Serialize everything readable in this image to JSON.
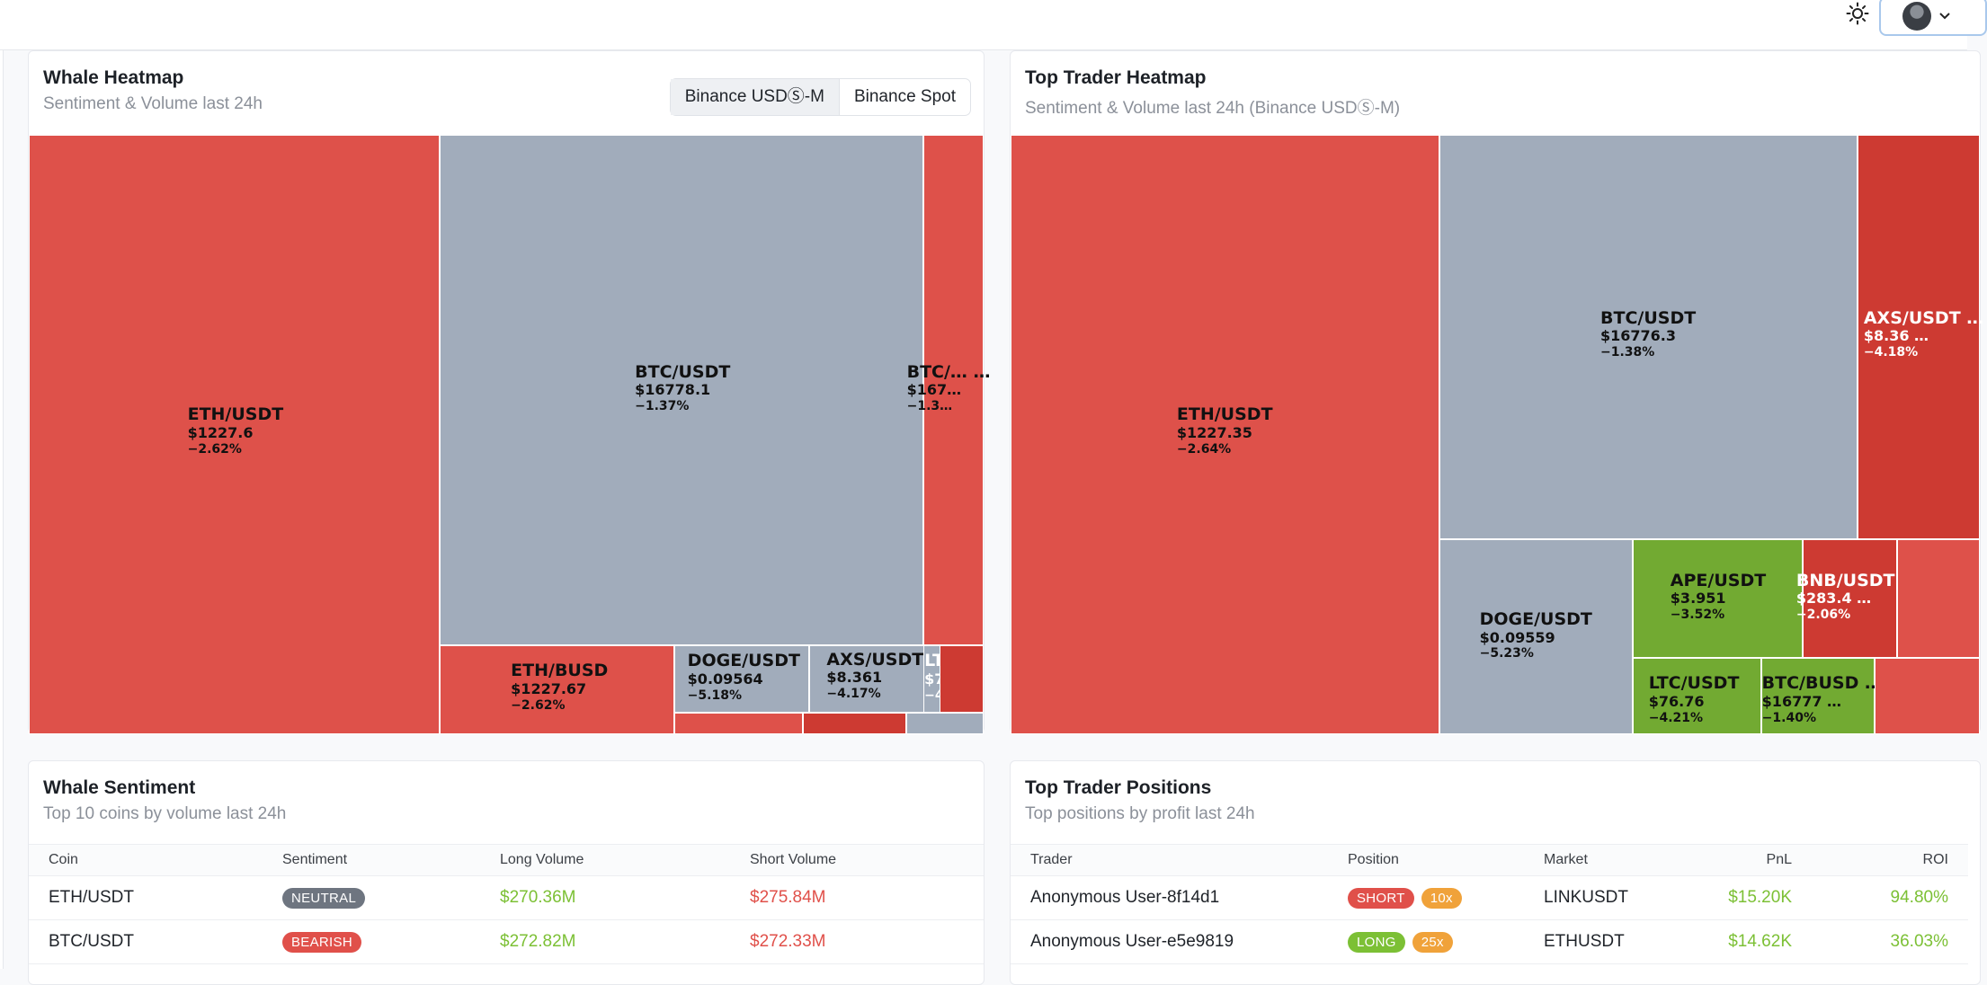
{
  "colors": {
    "bearish": "#de514a",
    "neutral": "#a1acbb",
    "bullish": "#72aa32",
    "strong_bearish": "#cd3a32"
  },
  "header": {
    "theme_icon": "sun-icon",
    "user_icon": "avatar",
    "menu_icon": "chevron-down-icon"
  },
  "whale_heatmap": {
    "title": "Whale Heatmap",
    "subtitle": "Sentiment & Volume last 24h",
    "tabs": [
      {
        "label": "Binance USDⓈ-M",
        "active": true
      },
      {
        "label": "Binance Spot",
        "active": false
      }
    ],
    "tiles": [
      {
        "symbol": "ETH/USDT",
        "price": "$1227.6",
        "change": "−2.62%",
        "color": "bearish"
      },
      {
        "symbol": "BTC/USDT",
        "price": "$16778.1",
        "change": "−1.37%",
        "color": "neutral"
      },
      {
        "symbol": "BTC/… …",
        "price": "$167…",
        "change": "−1.3…",
        "color": "bearish"
      },
      {
        "symbol": "ETH/BUSD",
        "price": "$1227.67",
        "change": "−2.62%",
        "color": "bearish"
      },
      {
        "symbol": "DOGE/USDT",
        "price": "$0.09564",
        "change": "−5.18%",
        "color": "neutral"
      },
      {
        "symbol": "AXS/USDT",
        "price": "$8.361",
        "change": "−4.17%",
        "color": "neutral"
      },
      {
        "symbol": "LT… …",
        "price": "$76…",
        "change": "−4…",
        "color": "neutral"
      },
      {
        "symbol": "",
        "price": "",
        "change": "",
        "color": "strong_bearish"
      },
      {
        "symbol": "",
        "price": "",
        "change": "",
        "color": "bearish"
      },
      {
        "symbol": "",
        "price": "",
        "change": "",
        "color": "strong_bearish"
      },
      {
        "symbol": "",
        "price": "",
        "change": "",
        "color": "neutral"
      }
    ]
  },
  "top_trader_heatmap": {
    "title": "Top Trader Heatmap",
    "subtitle": "Sentiment & Volume last 24h (Binance USDⓈ-M)",
    "tiles": [
      {
        "symbol": "ETH/USDT",
        "price": "$1227.35",
        "change": "−2.64%",
        "color": "bearish"
      },
      {
        "symbol": "BTC/USDT",
        "price": "$16776.3",
        "change": "−1.38%",
        "color": "neutral"
      },
      {
        "symbol": "AXS/USDT …",
        "price": "$8.36 …",
        "change": "−4.18%",
        "color": "strong_bearish"
      },
      {
        "symbol": "DOGE/USDT",
        "price": "$0.09559",
        "change": "−5.23%",
        "color": "neutral"
      },
      {
        "symbol": "APE/USDT",
        "price": "$3.951",
        "change": "−3.52%",
        "color": "bullish"
      },
      {
        "symbol": "BNB/USDT …",
        "price": "$283.4 …",
        "change": "−2.06%",
        "color": "strong_bearish"
      },
      {
        "symbol": "",
        "price": "",
        "change": "",
        "color": "bearish"
      },
      {
        "symbol": "LTC/USDT",
        "price": "$76.76",
        "change": "−4.21%",
        "color": "bullish"
      },
      {
        "symbol": "BTC/BUSD …",
        "price": "$16777 …",
        "change": "−1.40%",
        "color": "bullish"
      },
      {
        "symbol": "",
        "price": "",
        "change": "",
        "color": "bearish"
      }
    ]
  },
  "whale_sentiment": {
    "title": "Whale Sentiment",
    "subtitle": "Top 10 coins by volume last 24h",
    "columns": [
      "Coin",
      "Sentiment",
      "Long Volume",
      "Short Volume"
    ],
    "rows": [
      {
        "coin": "ETH/USDT",
        "sentiment": "NEUTRAL",
        "long": "$270.36M",
        "short": "$275.84M"
      },
      {
        "coin": "BTC/USDT",
        "sentiment": "BEARISH",
        "long": "$272.82M",
        "short": "$272.33M"
      }
    ]
  },
  "top_trader_positions": {
    "title": "Top Trader Positions",
    "subtitle": "Top positions by profit last 24h",
    "columns": [
      "Trader",
      "Position",
      "Market",
      "PnL",
      "ROI"
    ],
    "rows": [
      {
        "trader": "Anonymous User-8f14d1",
        "side": "SHORT",
        "leverage": "10x",
        "market": "LINKUSDT",
        "pnl": "$15.20K",
        "roi": "94.80%"
      },
      {
        "trader": "Anonymous User-e5e9819",
        "side": "LONG",
        "leverage": "25x",
        "market": "ETHUSDT",
        "pnl": "$14.62K",
        "roi": "36.03%"
      }
    ]
  }
}
